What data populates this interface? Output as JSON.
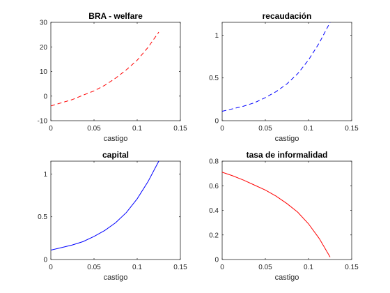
{
  "chart_data": [
    {
      "type": "line",
      "title": "BRA - welfare",
      "xlabel": "castigo",
      "ylabel": "",
      "xlim": [
        0,
        0.15
      ],
      "ylim": [
        -10,
        30
      ],
      "xticks": [
        0,
        0.05,
        0.1,
        0.15
      ],
      "xtick_labels": [
        "0",
        "0.05",
        "0.1",
        "0.15"
      ],
      "yticks": [
        -10,
        0,
        10,
        20,
        30
      ],
      "ytick_labels": [
        "-10",
        "0",
        "10",
        "20",
        "30"
      ],
      "grid": false,
      "series": [
        {
          "color": "#ff0000",
          "style": "dashed",
          "x": [
            0,
            0.0125,
            0.025,
            0.0375,
            0.05,
            0.0625,
            0.075,
            0.0875,
            0.1,
            0.1125,
            0.125
          ],
          "y": [
            -4.0,
            -2.7,
            -1.4,
            0.4,
            2.1,
            4.4,
            7.3,
            10.7,
            14.6,
            19.8,
            26.0
          ]
        }
      ]
    },
    {
      "type": "line",
      "title": "recaudación",
      "xlabel": "castigo",
      "ylabel": "",
      "xlim": [
        0,
        0.15
      ],
      "ylim": [
        0,
        1.15
      ],
      "xticks": [
        0,
        0.05,
        0.1,
        0.15
      ],
      "xtick_labels": [
        "0",
        "0.05",
        "0.1",
        "0.15"
      ],
      "yticks": [
        0,
        0.5,
        1
      ],
      "ytick_labels": [
        "0",
        "0.5",
        "1"
      ],
      "grid": false,
      "series": [
        {
          "color": "#0000ff",
          "style": "dashed",
          "x": [
            0,
            0.0125,
            0.025,
            0.0375,
            0.05,
            0.0625,
            0.075,
            0.0875,
            0.1,
            0.1125,
            0.125
          ],
          "y": [
            0.11,
            0.14,
            0.17,
            0.21,
            0.27,
            0.34,
            0.43,
            0.55,
            0.71,
            0.91,
            1.15
          ]
        }
      ]
    },
    {
      "type": "line",
      "title": "capital",
      "xlabel": "castigo",
      "ylabel": "",
      "xlim": [
        0,
        0.15
      ],
      "ylim": [
        0,
        1.15
      ],
      "xticks": [
        0,
        0.05,
        0.1,
        0.15
      ],
      "xtick_labels": [
        "0",
        "0.05",
        "0.1",
        "0.15"
      ],
      "yticks": [
        0,
        0.5,
        1
      ],
      "ytick_labels": [
        "0",
        "0.5",
        "1"
      ],
      "grid": false,
      "series": [
        {
          "color": "#0000ff",
          "style": "solid",
          "x": [
            0,
            0.0125,
            0.025,
            0.0375,
            0.05,
            0.0625,
            0.075,
            0.0875,
            0.1,
            0.1125,
            0.125
          ],
          "y": [
            0.11,
            0.14,
            0.17,
            0.21,
            0.27,
            0.34,
            0.43,
            0.55,
            0.71,
            0.91,
            1.15
          ]
        }
      ]
    },
    {
      "type": "line",
      "title": "tasa de informalidad",
      "xlabel": "castigo",
      "ylabel": "",
      "xlim": [
        0,
        0.15
      ],
      "ylim": [
        0,
        0.8
      ],
      "xticks": [
        0,
        0.05,
        0.1,
        0.15
      ],
      "xtick_labels": [
        "0",
        "0.05",
        "0.1",
        "0.15"
      ],
      "yticks": [
        0,
        0.2,
        0.4,
        0.6,
        0.8
      ],
      "ytick_labels": [
        "0",
        "0.2",
        "0.4",
        "0.6",
        "0.8"
      ],
      "grid": false,
      "series": [
        {
          "color": "#ff0000",
          "style": "solid",
          "x": [
            0,
            0.0125,
            0.025,
            0.0375,
            0.05,
            0.0625,
            0.075,
            0.0875,
            0.1,
            0.1125,
            0.125
          ],
          "y": [
            0.71,
            0.68,
            0.645,
            0.605,
            0.565,
            0.515,
            0.455,
            0.385,
            0.29,
            0.17,
            0.02
          ]
        }
      ]
    }
  ]
}
